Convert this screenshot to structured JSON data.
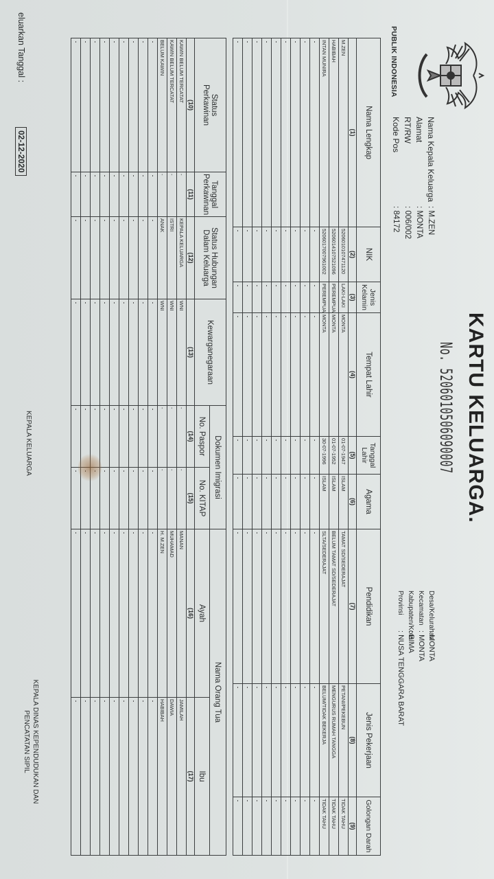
{
  "header": {
    "country": "PUBLIK INDONESIA",
    "title": "KARTU KELUARGA.",
    "number": "No. 5206010506090007",
    "left_fields": [
      {
        "label": "Nama Kepala Keluarga",
        "value": ": M.ZEN"
      },
      {
        "label": "Alamat",
        "value": ": MONTA"
      },
      {
        "label": "RT/RW",
        "value": ": 006/002"
      },
      {
        "label": "Kode Pos",
        "value": ": 84172"
      }
    ],
    "right_fields": [
      {
        "label": "Desa/Kelurahan",
        "value": ": MONTA"
      },
      {
        "label": "Kecamatan",
        "value": ": MONTA"
      },
      {
        "label": "Kabupaten/Kota",
        "value": ": BIMA"
      },
      {
        "label": "Provinsi",
        "value": ": NUSA TENGGARA BARAT"
      }
    ]
  },
  "table1": {
    "headers": [
      "Nama Lengkap",
      "NIK",
      "Jenis Kelamin",
      "Tempat Lahir",
      "Tanggal Lahir",
      "Agama",
      "Pendidikan",
      "Jenis Pekerjaan",
      "Golongan Darah"
    ],
    "numbers": [
      "(1)",
      "(2)",
      "(3)",
      "(4)",
      "(5)",
      "(6)",
      "(7)",
      "(8)",
      "(9)"
    ],
    "rows": [
      [
        "M.ZEN",
        "5206010107471120",
        "LAKI-LAKI",
        "MONTA",
        "01-07-1947",
        "ISLAM",
        "TAMAT SD/SEDERAJAT",
        "PETANI/PEKEBUN",
        "TIDAK TAHU"
      ],
      [
        "HABIBAH",
        "5206014107521096",
        "PEREMPUAN",
        "MONTA",
        "01-07-1952",
        "ISLAM",
        "BELUM TAMAT SD/SEDERAJAT",
        "MENGURUS RUMAH TANGGA",
        "TIDAK TAHU"
      ],
      [
        "INTAN MUNIRA",
        "5206017007961002",
        "PEREMPUAN",
        "MONTA",
        "30-07-1996",
        "ISLAM",
        "SLTA/SEDERAJAT",
        "BELUM/TIDAK BEKERJA",
        "TIDAK TAHU"
      ]
    ]
  },
  "table2": {
    "headers": [
      "Status Perkawinan",
      "Tanggal Perkawinan",
      "Status Hubungan Dalam Keluarga",
      "Kewarganegaraan",
      "Dokumen Imigrasi",
      "No. Paspor",
      "No. KITAP",
      "Nama Orang Tua",
      "Ayah",
      "Ibu"
    ],
    "numbers": [
      "(10)",
      "(11)",
      "(12)",
      "(13)",
      "(14)",
      "(15)",
      "(16)",
      "(17)"
    ],
    "rows": [
      [
        "KAWIN BELUM TERCATAT",
        "-",
        "KEPALA KELUARGA",
        "WNI",
        "-",
        "-",
        "MANAN",
        "JAMILAH"
      ],
      [
        "KAWIN BELUM TERCATAT",
        "-",
        "ISTRI",
        "WNI",
        "-",
        "-",
        "MUHAMAD",
        "DAWIA"
      ],
      [
        "BELUM KAWIN",
        "-",
        "ANAK",
        "WNI",
        "-",
        "-",
        "H. M.ZEN",
        "HABIBAH"
      ]
    ]
  },
  "footer": {
    "issued_label": "eluarkan Tanggal  :",
    "issued_date": "02-12-2020",
    "sign_head": "KEPALA KELUARGA",
    "sign_office_1": "KEPALA DINAS KEPENDUDUKAN DAN",
    "sign_office_2": "PENCATATAN SIPIL"
  },
  "colors": {
    "paper": "#dfe4e3",
    "ink": "#2a2d2e"
  }
}
